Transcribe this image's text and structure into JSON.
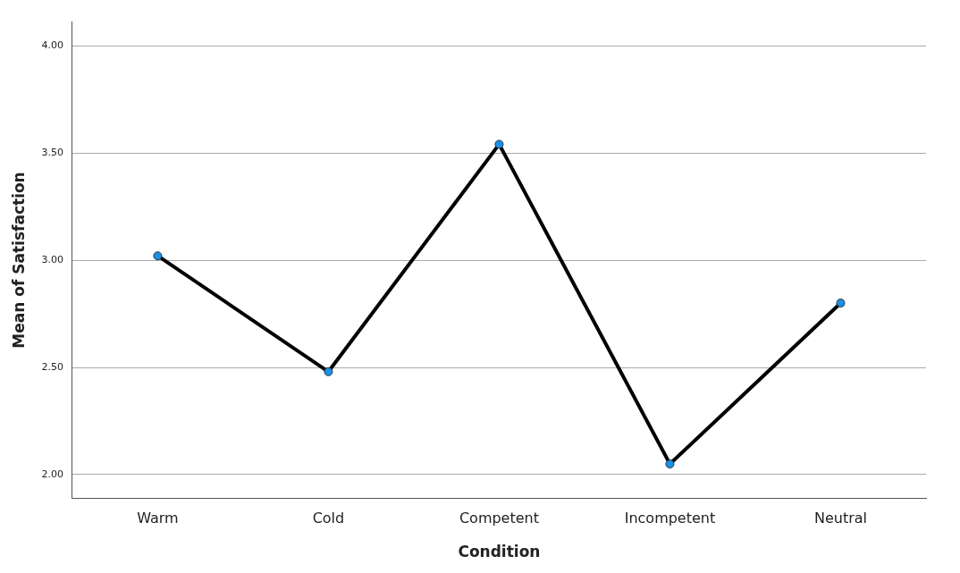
{
  "chart_data": {
    "type": "line",
    "xlabel": "Condition",
    "ylabel": "Mean of Satisfaction",
    "categories": [
      "Warm",
      "Cold",
      "Competent",
      "Incompetent",
      "Neutral"
    ],
    "series": [
      {
        "color": "#000000",
        "values": [
          3.02,
          2.48,
          3.54,
          2.05,
          2.8
        ]
      }
    ],
    "ylim": [
      1.89,
      4.11
    ],
    "yticks": [
      {
        "value": 2,
        "label": "2.00"
      },
      {
        "value": 2.5,
        "label": "2.50"
      },
      {
        "value": 3,
        "label": "3.00"
      },
      {
        "value": 3.5,
        "label": "3.50"
      },
      {
        "value": 4,
        "label": "4.00"
      }
    ],
    "grid": "y",
    "legend": false,
    "marker": "circle",
    "line_style": "solid"
  }
}
